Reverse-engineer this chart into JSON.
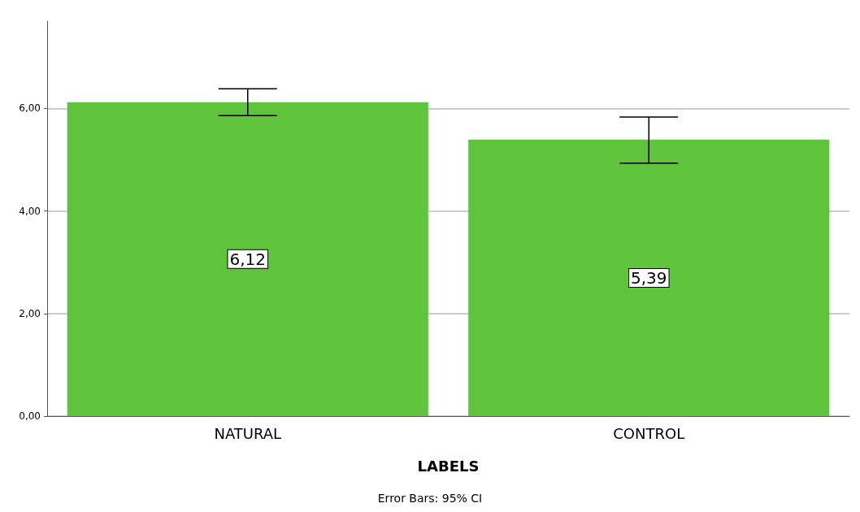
{
  "chart_data": {
    "type": "bar",
    "categories": [
      "NATURAL",
      "CONTROL"
    ],
    "values": [
      6.12,
      5.39
    ],
    "color": "#5fc33b",
    "value_labels": [
      "6,12",
      "5,39"
    ],
    "errors": [
      [
        5.86,
        6.38
      ],
      [
        4.93,
        5.83
      ]
    ],
    "xlabel": "LABELS",
    "annotations": [
      "Error Bars: 95% CI"
    ],
    "ylim": [
      0,
      7.7
    ],
    "yticks": [
      {
        "value": 0,
        "label": "0,00"
      },
      {
        "value": 2,
        "label": "2,00"
      },
      {
        "value": 4,
        "label": "4,00"
      },
      {
        "value": 6,
        "label": "6,00"
      }
    ],
    "grid": "y"
  }
}
